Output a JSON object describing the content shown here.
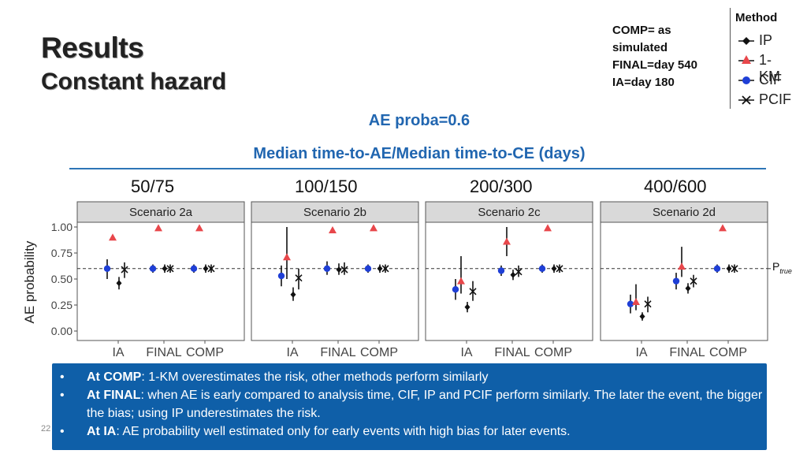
{
  "slide": {
    "title_line1": "Results",
    "title_line2": "Constant hazard",
    "note_lines": [
      "COMP= as",
      "simulated",
      "FINAL=day 540",
      "IA=day 180"
    ],
    "subtitle1": "AE proba=0.6",
    "subtitle2": "Median time-to-AE/Median time-to-CE (days)",
    "ratios": [
      "50/75",
      "100/150",
      "200/300",
      "400/600"
    ],
    "ptrue_main": "P",
    "ptrue_sub": "true",
    "page_number": "22",
    "bullets": [
      {
        "bold": "At COMP",
        "text": ": 1-KM overestimates the risk, other methods perform similarly"
      },
      {
        "bold": "At FINAL",
        "text": ": when AE is early compared to analysis time, CIF, IP and PCIF perform similarly. The later the event, the bigger the bias; using IP underestimates the risk."
      },
      {
        "bold": "At IA",
        "text": ": AE probability well estimated only for early events with high bias for later events."
      }
    ]
  },
  "legend": {
    "title": "Method",
    "items": [
      {
        "label": "IP",
        "marker": "diamond",
        "color": "#111111"
      },
      {
        "label": "1-KM",
        "marker": "triangle",
        "color": "#e8474b"
      },
      {
        "label": "CIF",
        "marker": "circle",
        "color": "#1f3fd6"
      },
      {
        "label": "PCIF",
        "marker": "cross",
        "color": "#111111"
      }
    ]
  },
  "chart_data": {
    "type": "scatter",
    "ylabel": "AE probability",
    "ylim": [
      0,
      1
    ],
    "yticks": [
      "0.00",
      "0.25",
      "0.50",
      "0.75",
      "1.00"
    ],
    "reference_line": 0.6,
    "categories": [
      "IA",
      "FINAL",
      "COMP"
    ],
    "method_order": [
      "CIF",
      "1-KM",
      "IP",
      "PCIF"
    ],
    "panels": [
      {
        "title": "Scenario 2a",
        "groups": {
          "IA": {
            "CIF": [
              0.6,
              0.5,
              0.69
            ],
            "1-KM": [
              0.9,
              0.9,
              0.9
            ],
            "IP": [
              0.46,
              0.4,
              0.52
            ],
            "PCIF": [
              0.59,
              0.51,
              0.66
            ]
          },
          "FINAL": {
            "CIF": [
              0.6,
              0.56,
              0.64
            ],
            "1-KM": [
              0.99,
              0.99,
              0.99
            ],
            "IP": [
              0.6,
              0.56,
              0.64
            ],
            "PCIF": [
              0.6,
              0.56,
              0.64
            ]
          },
          "COMP": {
            "CIF": [
              0.6,
              0.56,
              0.64
            ],
            "1-KM": [
              0.99,
              0.99,
              0.99
            ],
            "IP": [
              0.6,
              0.56,
              0.64
            ],
            "PCIF": [
              0.6,
              0.56,
              0.64
            ]
          }
        }
      },
      {
        "title": "Scenario 2b",
        "groups": {
          "IA": {
            "CIF": [
              0.53,
              0.43,
              0.63
            ],
            "1-KM": [
              0.71,
              0.5,
              1.0
            ],
            "IP": [
              0.35,
              0.29,
              0.42
            ],
            "PCIF": [
              0.51,
              0.4,
              0.6
            ]
          },
          "FINAL": {
            "CIF": [
              0.6,
              0.54,
              0.67
            ],
            "1-KM": [
              0.97,
              0.97,
              0.97
            ],
            "IP": [
              0.59,
              0.54,
              0.65
            ],
            "PCIF": [
              0.59,
              0.54,
              0.66
            ]
          },
          "COMP": {
            "CIF": [
              0.6,
              0.56,
              0.64
            ],
            "1-KM": [
              0.99,
              0.99,
              0.99
            ],
            "IP": [
              0.6,
              0.56,
              0.64
            ],
            "PCIF": [
              0.6,
              0.56,
              0.64
            ]
          }
        }
      },
      {
        "title": "Scenario 2c",
        "groups": {
          "IA": {
            "CIF": [
              0.4,
              0.3,
              0.5
            ],
            "1-KM": [
              0.48,
              0.36,
              0.72
            ],
            "IP": [
              0.23,
              0.18,
              0.28
            ],
            "PCIF": [
              0.38,
              0.29,
              0.48
            ]
          },
          "FINAL": {
            "CIF": [
              0.58,
              0.53,
              0.63
            ],
            "1-KM": [
              0.86,
              0.72,
              1.0
            ],
            "IP": [
              0.54,
              0.49,
              0.59
            ],
            "PCIF": [
              0.57,
              0.52,
              0.63
            ]
          },
          "COMP": {
            "CIF": [
              0.6,
              0.56,
              0.64
            ],
            "1-KM": [
              0.99,
              0.99,
              0.99
            ],
            "IP": [
              0.6,
              0.56,
              0.64
            ],
            "PCIF": [
              0.6,
              0.56,
              0.64
            ]
          }
        }
      },
      {
        "title": "Scenario 2d",
        "groups": {
          "IA": {
            "CIF": [
              0.26,
              0.17,
              0.35
            ],
            "1-KM": [
              0.28,
              0.2,
              0.45
            ],
            "IP": [
              0.14,
              0.1,
              0.18
            ],
            "PCIF": [
              0.26,
              0.18,
              0.33
            ]
          },
          "FINAL": {
            "CIF": [
              0.48,
              0.4,
              0.56
            ],
            "1-KM": [
              0.62,
              0.52,
              0.81
            ],
            "IP": [
              0.41,
              0.36,
              0.46
            ],
            "PCIF": [
              0.48,
              0.42,
              0.54
            ]
          },
          "COMP": {
            "CIF": [
              0.6,
              0.56,
              0.64
            ],
            "1-KM": [
              0.99,
              0.99,
              0.99
            ],
            "IP": [
              0.6,
              0.56,
              0.64
            ],
            "PCIF": [
              0.6,
              0.56,
              0.64
            ]
          }
        }
      }
    ]
  }
}
